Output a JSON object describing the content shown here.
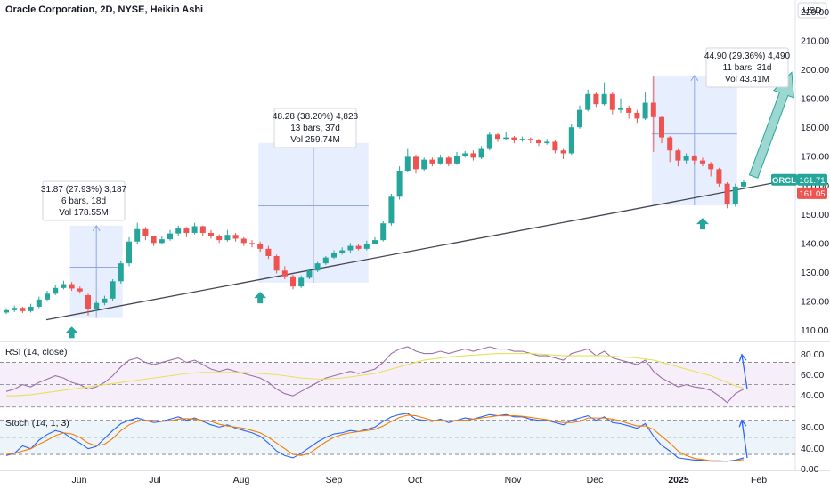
{
  "header": {
    "title": "Oracle Corporation, 2D, NYSE, Heikin Ashi",
    "currency": "USD"
  },
  "price_badges": {
    "ticker_label": "ORCL",
    "last_price": "161.71",
    "second_price": "161.05",
    "last_color": "#26a69a",
    "second_color": "#ef5350"
  },
  "colors": {
    "up": "#26a69a",
    "down": "#ef5350",
    "range_fill": "#e3ebfd",
    "trendline": "#434651",
    "arrow": "#26a69a",
    "rsi_line": "#9c6fa8",
    "rsi_ma": "#e8e05a",
    "stoch_k": "#2962ff",
    "stoch_d": "#f57c00",
    "oscillator_arrow": "#2962ff"
  },
  "callouts": [
    {
      "line1": "31.87 (27.93%) 3,187",
      "line2": "6 bars, 18d",
      "line3": "Vol 178.55M"
    },
    {
      "line1": "48.28 (38.20%) 4,828",
      "line2": "13 bars, 37d",
      "line3": "Vol 259.74M"
    },
    {
      "line1": "44.90 (29.36%) 4,490",
      "line2": "11 bars, 31d",
      "line3": "Vol 43.41M"
    }
  ],
  "rsi_panel": {
    "label": "RSI (14, close)",
    "ticks": [
      "80.00",
      "60.00",
      "40.00"
    ]
  },
  "stoch_panel": {
    "label": "Stoch (14, 1, 3)",
    "ticks": [
      "80.00",
      "40.00",
      "0.00"
    ]
  },
  "x_labels": [
    "Jun",
    "Jul",
    "Aug",
    "Sep",
    "Oct",
    "Nov",
    "Dec",
    "2025",
    "Feb"
  ],
  "chart_data": {
    "type": "candlestick",
    "style": "Heikin Ashi",
    "title": "Oracle Corporation, 2D, NYSE, Heikin Ashi",
    "y_unit": "USD",
    "y_ticks": [
      110,
      120,
      130,
      140,
      150,
      160,
      170,
      180,
      190,
      200,
      210,
      220
    ],
    "ylim": [
      106,
      224
    ],
    "x_ticks": [
      "Jun",
      "Jul",
      "Aug",
      "Sep",
      "Oct",
      "Nov",
      "Dec",
      "2025",
      "Feb"
    ],
    "candles": [
      [
        116.0,
        116.8,
        117.5,
        115.5
      ],
      [
        116.8,
        117.6,
        118.4,
        116.2
      ],
      [
        117.6,
        116.5,
        118.0,
        115.8
      ],
      [
        116.5,
        118.0,
        119.0,
        116.0
      ],
      [
        118.0,
        120.5,
        121.5,
        117.5
      ],
      [
        120.5,
        122.5,
        123.5,
        119.8
      ],
      [
        122.5,
        124.5,
        125.5,
        122.0
      ],
      [
        124.5,
        125.8,
        127.0,
        124.0
      ],
      [
        125.8,
        124.3,
        126.5,
        123.5
      ],
      [
        124.3,
        123.3,
        125.0,
        122.5
      ],
      [
        122.0,
        117.3,
        122.5,
        115.0
      ],
      [
        117.3,
        119.3,
        120.0,
        116.5
      ],
      [
        119.3,
        120.8,
        121.8,
        118.5
      ],
      [
        120.8,
        126.8,
        127.5,
        120.0
      ],
      [
        126.8,
        133.0,
        134.0,
        126.0
      ],
      [
        133.0,
        140.5,
        142.0,
        132.0
      ],
      [
        140.5,
        144.8,
        147.0,
        139.5
      ],
      [
        144.8,
        142.3,
        145.5,
        141.0
      ],
      [
        142.3,
        140.0,
        142.5,
        139.0
      ],
      [
        140.0,
        141.3,
        142.5,
        139.5
      ],
      [
        141.3,
        143.3,
        144.5,
        140.8
      ],
      [
        143.3,
        145.0,
        146.0,
        142.5
      ],
      [
        145.0,
        143.5,
        145.5,
        142.0
      ],
      [
        143.5,
        145.8,
        147.0,
        143.0
      ],
      [
        145.8,
        143.5,
        146.0,
        142.5
      ],
      [
        143.5,
        142.5,
        144.5,
        141.5
      ],
      [
        142.5,
        141.0,
        143.0,
        140.0
      ],
      [
        141.0,
        142.8,
        144.5,
        140.5
      ],
      [
        142.8,
        141.5,
        143.5,
        140.5
      ],
      [
        141.5,
        140.0,
        142.0,
        139.0
      ],
      [
        140.0,
        139.5,
        141.0,
        138.5
      ],
      [
        139.5,
        138.0,
        140.5,
        137.0
      ],
      [
        138.0,
        135.5,
        139.0,
        134.5
      ],
      [
        135.5,
        130.5,
        136.0,
        129.5
      ],
      [
        130.5,
        128.5,
        132.0,
        127.5
      ],
      [
        128.5,
        125.0,
        129.0,
        124.0
      ],
      [
        125.0,
        128.0,
        128.8,
        124.5
      ],
      [
        128.0,
        130.5,
        131.0,
        127.5
      ],
      [
        130.5,
        133.0,
        133.5,
        130.0
      ],
      [
        133.0,
        135.0,
        135.5,
        132.5
      ],
      [
        135.0,
        136.5,
        137.5,
        134.5
      ],
      [
        136.5,
        137.5,
        138.5,
        136.0
      ],
      [
        137.5,
        139.0,
        140.0,
        136.5
      ],
      [
        139.0,
        138.0,
        139.5,
        137.5
      ],
      [
        138.0,
        139.8,
        140.8,
        137.5
      ],
      [
        139.8,
        141.0,
        142.0,
        139.5
      ],
      [
        141.0,
        146.8,
        147.5,
        140.5
      ],
      [
        146.8,
        156.0,
        157.0,
        146.0
      ],
      [
        156.0,
        165.0,
        166.5,
        155.0
      ],
      [
        165.0,
        169.8,
        172.5,
        164.5
      ],
      [
        169.8,
        165.5,
        170.5,
        164.0
      ],
      [
        165.5,
        168.8,
        169.5,
        165.0
      ],
      [
        168.8,
        167.5,
        169.5,
        166.5
      ],
      [
        167.5,
        169.5,
        170.5,
        167.0
      ],
      [
        169.5,
        167.5,
        170.0,
        166.5
      ],
      [
        167.5,
        170.0,
        171.5,
        167.0
      ],
      [
        170.0,
        171.0,
        171.8,
        169.5
      ],
      [
        171.0,
        169.5,
        172.0,
        168.5
      ],
      [
        169.5,
        172.5,
        173.5,
        169.0
      ],
      [
        172.5,
        177.5,
        178.5,
        172.0
      ],
      [
        177.5,
        176.0,
        178.0,
        175.0
      ],
      [
        176.0,
        176.5,
        178.5,
        175.5
      ],
      [
        176.5,
        175.5,
        177.0,
        174.5
      ],
      [
        175.5,
        176.0,
        176.8,
        175.0
      ],
      [
        176.0,
        175.5,
        176.5,
        174.5
      ],
      [
        175.5,
        174.5,
        176.0,
        173.5
      ],
      [
        174.5,
        175.0,
        176.0,
        174.0
      ],
      [
        175.0,
        172.0,
        175.5,
        171.0
      ],
      [
        172.0,
        171.0,
        172.5,
        169.0
      ],
      [
        171.0,
        180.0,
        181.0,
        170.5
      ],
      [
        180.0,
        186.0,
        187.5,
        179.5
      ],
      [
        186.0,
        191.5,
        193.0,
        185.5
      ],
      [
        191.5,
        188.0,
        192.0,
        187.0
      ],
      [
        188.0,
        191.5,
        195.5,
        187.5
      ],
      [
        191.5,
        186.0,
        192.0,
        184.5
      ],
      [
        186.0,
        186.5,
        190.0,
        185.0
      ],
      [
        186.5,
        185.0,
        187.5,
        183.0
      ],
      [
        185.0,
        183.0,
        186.0,
        181.5
      ],
      [
        183.0,
        188.5,
        192.0,
        182.5
      ],
      [
        188.5,
        183.5,
        197.5,
        171.5
      ],
      [
        183.5,
        176.5,
        184.0,
        174.5
      ],
      [
        176.5,
        172.0,
        177.0,
        168.0
      ],
      [
        172.0,
        168.5,
        172.5,
        166.5
      ],
      [
        168.5,
        170.0,
        171.0,
        167.5
      ],
      [
        170.0,
        168.5,
        170.5,
        167.0
      ],
      [
        168.5,
        167.5,
        169.5,
        166.5
      ],
      [
        167.5,
        165.5,
        168.0,
        163.0
      ],
      [
        165.5,
        160.5,
        166.0,
        159.5
      ],
      [
        160.5,
        153.5,
        161.0,
        152.0
      ],
      [
        153.5,
        159.5,
        160.5,
        152.5
      ],
      [
        159.5,
        161.0,
        162.0,
        159.0
      ]
    ],
    "ranges": [
      {
        "label": "31.87 (27.93%) 3,187",
        "y_from": 114.1,
        "y_to": 146.0
      },
      {
        "label": "48.28 (38.20%) 4,828",
        "y_from": 126.3,
        "y_to": 174.6
      },
      {
        "label": "44.90 (29.36%) 4,490",
        "y_from": 153.0,
        "y_to": 197.9
      }
    ],
    "trendline": {
      "y_start": 113.5,
      "y_end": 162.0
    },
    "rsi": {
      "label": "RSI (14, close)",
      "ylim": [
        25,
        88
      ],
      "ticks": [
        80,
        60,
        40
      ],
      "bands": [
        70,
        50,
        30
      ],
      "values": [
        44,
        46,
        50,
        48,
        52,
        55,
        58,
        56,
        52,
        50,
        46,
        48,
        52,
        58,
        66,
        72,
        74,
        70,
        68,
        70,
        72,
        74,
        70,
        72,
        68,
        64,
        62,
        64,
        62,
        60,
        58,
        56,
        52,
        46,
        42,
        40,
        44,
        48,
        52,
        56,
        58,
        60,
        62,
        60,
        62,
        64,
        70,
        78,
        82,
        84,
        80,
        78,
        78,
        80,
        78,
        80,
        82,
        80,
        82,
        84,
        82,
        82,
        80,
        80,
        78,
        76,
        76,
        74,
        72,
        78,
        80,
        82,
        76,
        80,
        74,
        72,
        70,
        68,
        72,
        62,
        56,
        52,
        48,
        50,
        48,
        47,
        45,
        40,
        34,
        42,
        46
      ],
      "ma": [
        40,
        40,
        40.5,
        41,
        42,
        43,
        44,
        45,
        46,
        47,
        48,
        49,
        50,
        51,
        52,
        53,
        54,
        55,
        56,
        57,
        58,
        59,
        60,
        60.5,
        61,
        61,
        61,
        61,
        61,
        61,
        60.5,
        60,
        59.5,
        59,
        58,
        57,
        56,
        55.5,
        55,
        55,
        55.5,
        56,
        57,
        58,
        59,
        60,
        62,
        64,
        66,
        68,
        70,
        72,
        73,
        74,
        75,
        75.5,
        76,
        76.5,
        77,
        77.5,
        78,
        78,
        78,
        78,
        78,
        77.5,
        77,
        76.5,
        76,
        76,
        76,
        76,
        76,
        76,
        75.5,
        75,
        74.5,
        74,
        73,
        72,
        70,
        68,
        66,
        64,
        62,
        60,
        58,
        55,
        52,
        49,
        47
      ]
    },
    "stoch": {
      "label": "Stoch (14, 1, 3)",
      "ylim": [
        -8,
        92
      ],
      "ticks": [
        80,
        40,
        0
      ],
      "bands": [
        80,
        50,
        20
      ],
      "k": [
        18,
        22,
        35,
        30,
        45,
        55,
        62,
        58,
        48,
        40,
        30,
        34,
        48,
        62,
        74,
        80,
        84,
        80,
        76,
        78,
        82,
        86,
        80,
        84,
        78,
        72,
        68,
        72,
        66,
        62,
        58,
        52,
        40,
        26,
        18,
        14,
        22,
        32,
        42,
        50,
        56,
        58,
        62,
        60,
        64,
        68,
        78,
        86,
        90,
        92,
        82,
        80,
        78,
        82,
        76,
        80,
        84,
        82,
        86,
        90,
        88,
        90,
        86,
        86,
        82,
        80,
        80,
        76,
        72,
        80,
        84,
        88,
        80,
        86,
        76,
        74,
        70,
        66,
        74,
        52,
        36,
        26,
        14,
        12,
        10,
        10,
        8,
        8,
        8,
        10,
        14
      ],
      "d": [
        20,
        22,
        26,
        30,
        38,
        45,
        53,
        58,
        56,
        50,
        40,
        35,
        38,
        48,
        62,
        72,
        78,
        80,
        80,
        78,
        79,
        82,
        83,
        82,
        80,
        78,
        73,
        70,
        68,
        66,
        62,
        58,
        50,
        40,
        30,
        20,
        18,
        22,
        32,
        42,
        50,
        55,
        58,
        60,
        62,
        64,
        70,
        78,
        85,
        89,
        88,
        84,
        80,
        80,
        79,
        80,
        80,
        82,
        84,
        86,
        88,
        88,
        88,
        87,
        85,
        83,
        81,
        78,
        76,
        76,
        78,
        84,
        84,
        84,
        82,
        79,
        74,
        70,
        70,
        64,
        52,
        40,
        26,
        18,
        13,
        11,
        9,
        9,
        8,
        9,
        11
      ]
    }
  }
}
